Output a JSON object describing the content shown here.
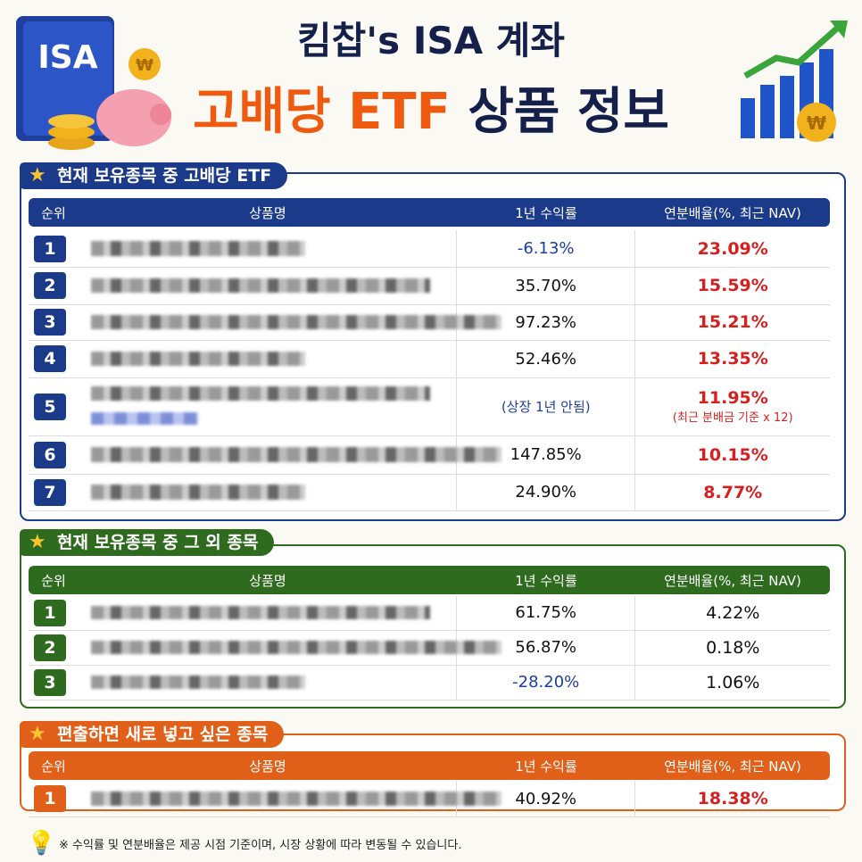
{
  "header": {
    "badge": "ISA",
    "coin_symbol": "₩",
    "title_line1": "킴찹's ISA 계좌",
    "title_line2a": "고배당 ETF",
    "title_line2b": "상품 정보"
  },
  "sections": [
    {
      "title": "현재 보유종목 중 고배당 ETF",
      "columns": [
        "순위",
        "상품명",
        "1년 수익률",
        "연분배율(%, 최근 NAV)"
      ],
      "rows": [
        {
          "rank": "1",
          "return": "-6.13%",
          "yield": "23.09%"
        },
        {
          "rank": "2",
          "return": "35.70%",
          "yield": "15.59%"
        },
        {
          "rank": "3",
          "return": "97.23%",
          "yield": "15.21%"
        },
        {
          "rank": "4",
          "return": "52.46%",
          "yield": "13.35%"
        },
        {
          "rank": "5",
          "return": "(상장 1년 안됨)",
          "yield": "11.95%",
          "yield_note": "(최근 분배금 기준 x 12)"
        },
        {
          "rank": "6",
          "return": "147.85%",
          "yield": "10.15%"
        },
        {
          "rank": "7",
          "return": "24.90%",
          "yield": "8.77%"
        }
      ]
    },
    {
      "title": "현재 보유종목 중 그 외 종목",
      "columns": [
        "순위",
        "상품명",
        "1년 수익률",
        "연분배율(%, 최근 NAV)"
      ],
      "rows": [
        {
          "rank": "1",
          "return": "61.75%",
          "yield": "4.22%"
        },
        {
          "rank": "2",
          "return": "56.87%",
          "yield": "0.18%"
        },
        {
          "rank": "3",
          "return": "-28.20%",
          "yield": "1.06%"
        }
      ]
    },
    {
      "title": "편출하면 새로 넣고 싶은 종목",
      "columns": [
        "순위",
        "상품명",
        "1년 수익률",
        "연분배율(%, 최근 NAV)"
      ],
      "rows": [
        {
          "rank": "1",
          "return": "40.92%",
          "yield": "18.38%"
        }
      ]
    }
  ],
  "footnote": "※ 수익률 및 연분배율은 제공 시점 기준이며, 시장 상황에 따라 변동될 수 있습니다."
}
